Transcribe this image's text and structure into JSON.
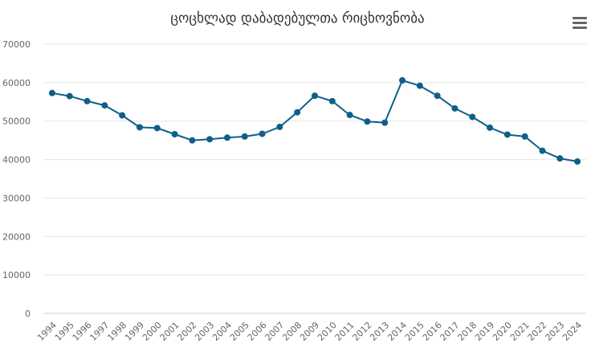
{
  "chart_data": {
    "type": "line",
    "title": "ცოცხლად დაბადებულთა რიცხოვნობა",
    "xlabel": "",
    "ylabel": "",
    "categories": [
      "1994",
      "1995",
      "1996",
      "1997",
      "1998",
      "1999",
      "2000",
      "2001",
      "2002",
      "2003",
      "2004",
      "2005",
      "2006",
      "2007",
      "2008",
      "2009",
      "2010",
      "2011",
      "2012",
      "2013",
      "2014",
      "2015",
      "2016",
      "2017",
      "2018",
      "2019",
      "2020",
      "2021",
      "2022",
      "2023",
      "2024"
    ],
    "series": [
      {
        "values": [
          57300,
          56500,
          55200,
          54100,
          51500,
          48400,
          48200,
          46600,
          45000,
          45300,
          45700,
          46000,
          46700,
          48500,
          52300,
          56600,
          55200,
          51600,
          49900,
          49600,
          60600,
          59200,
          56600,
          53300,
          51100,
          48300,
          46500,
          46000,
          42300,
          40300,
          39500
        ],
        "color": "#0f5f8a"
      }
    ],
    "ylim": [
      0,
      70000
    ],
    "yticks": [
      0,
      10000,
      20000,
      30000,
      40000,
      50000,
      60000,
      70000
    ],
    "grid": true,
    "legend": "none"
  },
  "colors": {
    "line": "#0f5f8a",
    "grid": "#e6e6e6",
    "axis_text": "#666666",
    "menu_icon": "#666666"
  },
  "menu": {
    "icon": "hamburger-menu-icon"
  }
}
